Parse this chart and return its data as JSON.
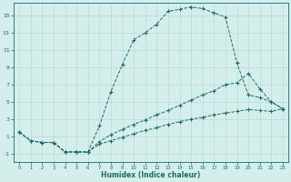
{
  "xlabel": "Humidex (Indice chaleur)",
  "bg_color": "#d4eeeb",
  "line_color": "#1a6b6b",
  "grid_color": "#b8ddd9",
  "xlim": [
    -0.5,
    23.5
  ],
  "ylim": [
    -2.0,
    16.5
  ],
  "xticks": [
    0,
    1,
    2,
    3,
    4,
    5,
    6,
    7,
    8,
    9,
    10,
    11,
    12,
    13,
    14,
    15,
    16,
    17,
    18,
    19,
    20,
    21,
    22,
    23
  ],
  "yticks": [
    -1,
    1,
    3,
    5,
    7,
    9,
    11,
    13,
    15
  ],
  "series1_x": [
    0,
    1,
    2,
    3,
    4,
    5,
    6,
    7,
    8,
    9,
    10,
    11,
    12,
    13,
    14,
    15,
    16,
    17,
    18,
    19,
    20,
    21,
    22,
    23
  ],
  "series1_y": [
    1.5,
    0.5,
    0.3,
    0.3,
    -0.8,
    -0.8,
    -0.8,
    2.2,
    6.2,
    9.3,
    12.2,
    13.0,
    14.0,
    15.5,
    15.7,
    16.0,
    15.8,
    15.3,
    14.8,
    9.5,
    5.8,
    5.5,
    5.0,
    4.2
  ],
  "series2_x": [
    0,
    1,
    2,
    3,
    4,
    5,
    6,
    7,
    8,
    9,
    10,
    11,
    12,
    13,
    14,
    15,
    16,
    17,
    18,
    19,
    20,
    21,
    22,
    23
  ],
  "series2_y": [
    1.5,
    0.5,
    0.3,
    0.3,
    -0.8,
    -0.8,
    -0.8,
    0.4,
    1.2,
    1.8,
    2.4,
    2.9,
    3.5,
    4.0,
    4.6,
    5.2,
    5.8,
    6.3,
    7.0,
    7.2,
    8.3,
    6.5,
    5.0,
    4.2
  ],
  "series3_x": [
    0,
    1,
    2,
    3,
    4,
    5,
    6,
    7,
    8,
    9,
    10,
    11,
    12,
    13,
    14,
    15,
    16,
    17,
    18,
    19,
    20,
    21,
    22,
    23
  ],
  "series3_y": [
    1.5,
    0.5,
    0.3,
    0.3,
    -0.8,
    -0.8,
    -0.8,
    0.1,
    0.5,
    0.9,
    1.3,
    1.7,
    2.0,
    2.4,
    2.7,
    3.0,
    3.2,
    3.5,
    3.7,
    3.9,
    4.1,
    4.0,
    3.9,
    4.2
  ]
}
